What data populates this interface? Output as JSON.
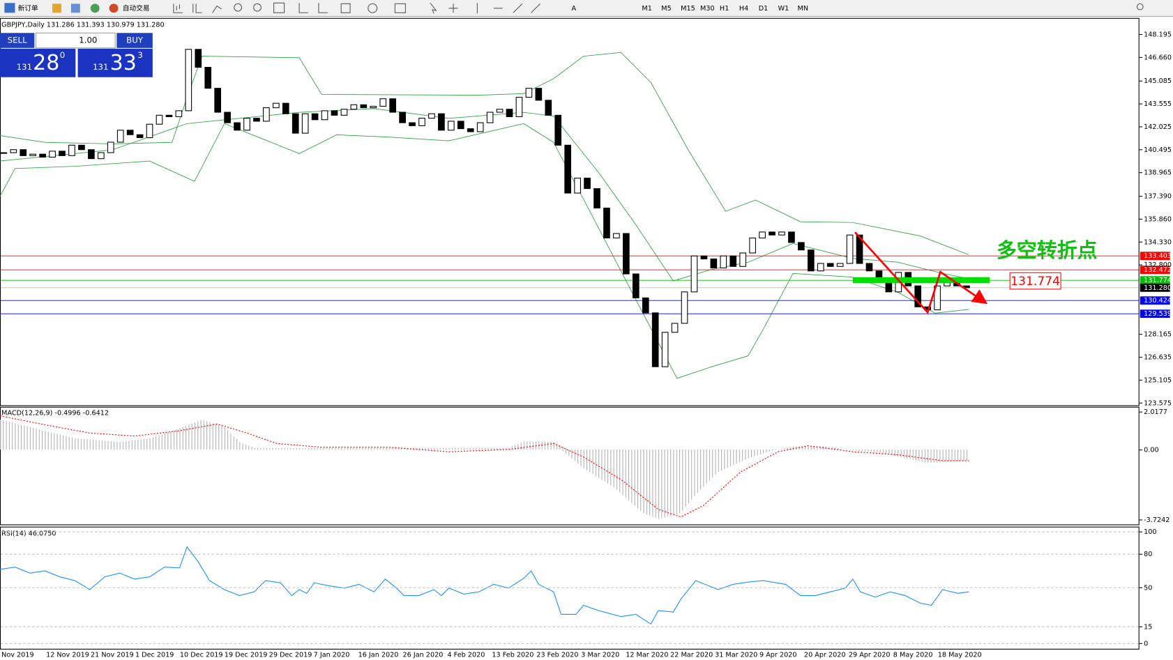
{
  "toolbar": {
    "new_order": "新订单",
    "auto_trading": "自动交易",
    "timeframes": [
      "M1",
      "M5",
      "M15",
      "M30",
      "H1",
      "H4",
      "D1",
      "W1",
      "MN"
    ]
  },
  "trade_panel": {
    "sell": "SELL",
    "buy": "BUY",
    "lots": "1.00",
    "bid_big": "131",
    "bid": "28",
    "bid_sup": "0",
    "ask_big": "131",
    "ask": "33",
    "ask_sup": "3"
  },
  "price_chart": {
    "header": "GBPJPY,Daily 131.286 131.393 130.979 131.280",
    "ylim": [
      123.575,
      148.195
    ],
    "yticks": [
      {
        "value": 148.195,
        "label": "148.195"
      },
      {
        "value": 146.66,
        "label": "146.660"
      },
      {
        "value": 145.085,
        "label": "145.085"
      },
      {
        "value": 143.555,
        "label": "143.555"
      },
      {
        "value": 142.025,
        "label": "142.025"
      },
      {
        "value": 140.495,
        "label": "140.495"
      },
      {
        "value": 138.965,
        "label": "138.965"
      },
      {
        "value": 137.39,
        "label": "137.390"
      },
      {
        "value": 135.86,
        "label": "135.860"
      },
      {
        "value": 134.33,
        "label": "134.330"
      },
      {
        "value": 132.8,
        "label": "132.800"
      },
      {
        "value": 128.165,
        "label": "128.165"
      },
      {
        "value": 126.635,
        "label": "126.635"
      },
      {
        "value": 125.105,
        "label": "125.105"
      },
      {
        "value": 123.575,
        "label": "123.575"
      }
    ],
    "levels": [
      {
        "value": 133.403,
        "label": "133.403",
        "color": "#ff0000"
      },
      {
        "value": 132.472,
        "label": "132.472",
        "color": "#ff0000"
      },
      {
        "value": 131.774,
        "label": "131.774",
        "color": "#00c000"
      },
      {
        "value": 131.28,
        "label": "131.280",
        "color": "#000000"
      },
      {
        "value": 130.424,
        "label": "130.424",
        "color": "#0000ff"
      },
      {
        "value": 129.539,
        "label": "129.539",
        "color": "#0000ff"
      }
    ],
    "closes": [
      140.3,
      140.5,
      140.1,
      140.2,
      140.0,
      140.4,
      140.1,
      140.8,
      140.5,
      139.9,
      140.3,
      141.0,
      141.8,
      141.5,
      141.3,
      142.2,
      142.8,
      142.7,
      143.1,
      147.2,
      146.0,
      144.6,
      143.0,
      142.3,
      141.8,
      142.6,
      142.4,
      143.3,
      143.6,
      142.9,
      141.6,
      142.9,
      142.5,
      143.1,
      142.8,
      143.2,
      143.5,
      143.3,
      143.4,
      143.9,
      143.0,
      142.3,
      142.1,
      142.6,
      142.9,
      141.8,
      142.4,
      141.9,
      141.7,
      142.3,
      143.0,
      143.2,
      142.7,
      144.0,
      144.6,
      143.8,
      142.8,
      140.8,
      137.6,
      138.6,
      137.9,
      136.6,
      134.6,
      134.9,
      132.2,
      130.6,
      129.6,
      126.0,
      128.3,
      128.9,
      131.0,
      133.4,
      133.2,
      132.6,
      133.4,
      132.7,
      133.6,
      134.6,
      135.0,
      134.8,
      135.0,
      134.3,
      133.8,
      132.4,
      132.9,
      132.7,
      132.9,
      134.8,
      132.9,
      132.4,
      131.9,
      131.0,
      132.3,
      131.4,
      130.0,
      129.8,
      131.4,
      131.8,
      131.4,
      131.28
    ],
    "annotation": "多空转折点",
    "annotation_price": "131.774"
  },
  "macd": {
    "header": "MACD(12,26,9) -0.4996 -0.6412",
    "ylim": [
      -3.7242,
      2.0177
    ],
    "yticks": [
      2.0177,
      {
        "value": 0,
        "label": "0.00"
      },
      -3.7242
    ]
  },
  "rsi": {
    "header": "RSI(14) 46.0750",
    "ylim": [
      0,
      100
    ],
    "yticks": [
      100,
      80,
      50,
      15,
      0
    ]
  },
  "dates": [
    "Nov 2019",
    "12 Nov 2019",
    "21 Nov 2019",
    "1 Dec 2019",
    "10 Dec 2019",
    "19 Dec 2019",
    "29 Dec 2019",
    "7 Jan 2020",
    "16 Jan 2020",
    "26 Jan 2020",
    "4 Feb 2020",
    "13 Feb 2020",
    "23 Feb 2020",
    "3 Mar 2020",
    "12 Mar 2020",
    "22 Mar 2020",
    "31 Mar 2020",
    "9 Apr 2020",
    "20 Apr 2020",
    "29 Apr 2020",
    "8 May 2020",
    "18 May 2020"
  ]
}
